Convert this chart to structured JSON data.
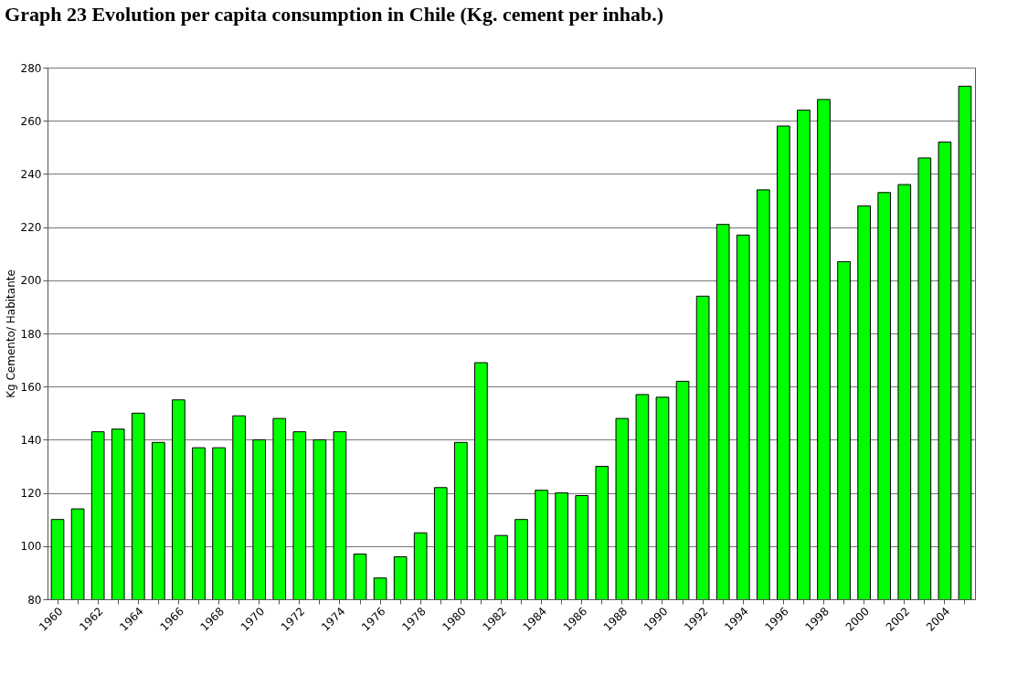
{
  "chart_data": {
    "type": "bar",
    "title": "Graph 23 Evolution per capita consumption in Chile (Kg. cement per inhab.)",
    "ylabel": "Kg Cemento/ Habitante",
    "categories": [
      "1960",
      null,
      "1962",
      null,
      "1964",
      null,
      "1966",
      null,
      "1968",
      null,
      "1970",
      null,
      "1972",
      null,
      "1974",
      null,
      "1976",
      null,
      "1978",
      null,
      "1980",
      null,
      "1982",
      null,
      "1984",
      null,
      "1986",
      null,
      "1988",
      null,
      "1990",
      null,
      "1992",
      null,
      "1994",
      null,
      "1996",
      null,
      "1998",
      null,
      "2000",
      null,
      "2002",
      null,
      "2004",
      null
    ],
    "values": [
      110,
      114,
      143,
      144,
      150,
      139,
      155,
      137,
      137,
      149,
      140,
      148,
      143,
      140,
      143,
      97,
      88,
      96,
      105,
      122,
      139,
      169,
      104,
      110,
      121,
      120,
      119,
      130,
      148,
      157,
      156,
      162,
      194,
      221,
      217,
      234,
      258,
      264,
      268,
      207,
      228,
      233,
      236,
      246,
      252,
      273
    ],
    "color": "#00ff00",
    "ylim": [
      80,
      280
    ],
    "yticks": [
      80,
      100,
      120,
      140,
      160,
      180,
      200,
      220,
      240,
      260,
      280
    ],
    "grid": "y"
  }
}
